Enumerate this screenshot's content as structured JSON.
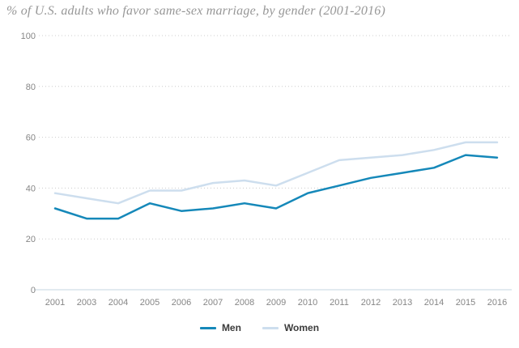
{
  "title": "% of U.S. adults who favor same-sex marriage, by gender (2001-2016)",
  "chart_data": {
    "type": "line",
    "categories": [
      "2001",
      "2003",
      "2004",
      "2005",
      "2006",
      "2007",
      "2008",
      "2009",
      "2010",
      "2011",
      "2012",
      "2013",
      "2014",
      "2015",
      "2016"
    ],
    "series": [
      {
        "name": "Men",
        "color": "#1588b9",
        "values": [
          32,
          28,
          28,
          34,
          31,
          32,
          34,
          32,
          38,
          41,
          44,
          46,
          48,
          53,
          52
        ]
      },
      {
        "name": "Women",
        "color": "#cddeee",
        "values": [
          38,
          36,
          34,
          39,
          39,
          42,
          43,
          41,
          46,
          51,
          52,
          53,
          55,
          58,
          58
        ]
      }
    ],
    "xlabel": "",
    "ylabel": "",
    "ylim": [
      0,
      100
    ],
    "yticks": [
      0,
      20,
      40,
      60,
      80,
      100
    ],
    "grid": "horizontal-dotted",
    "legend_position": "bottom-center",
    "colors": {
      "gridline": "#cccccc",
      "baseline": "#c5d5e1",
      "tick_text": "#868686",
      "title_text": "#979797",
      "legend_text": "#3b3b3b"
    }
  }
}
